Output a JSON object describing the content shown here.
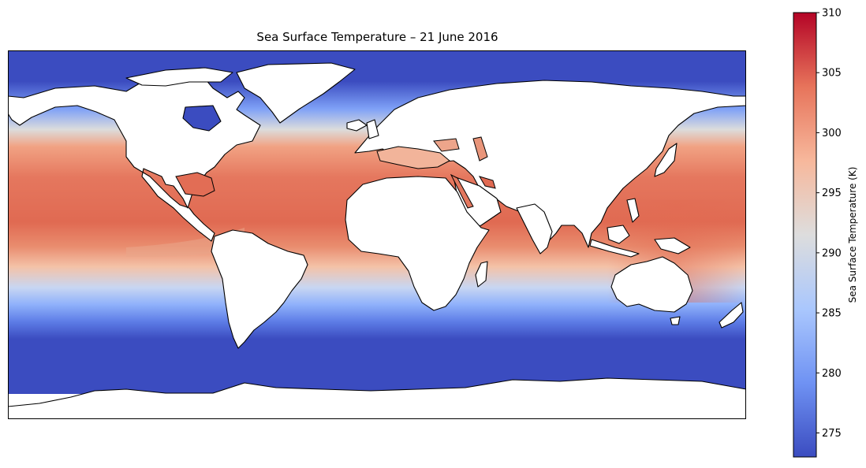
{
  "title": "Sea Surface Temperature – 21 June 2016",
  "colorbar": {
    "label": "Sea Surface Temperature (K)",
    "min": 273,
    "max": 310,
    "ticks": [
      275,
      280,
      285,
      290,
      295,
      300,
      305,
      310
    ],
    "colormap": "coolwarm",
    "colors": [
      "#3b4cc0",
      "#6f92f3",
      "#aac7fd",
      "#dddddd",
      "#f7b89c",
      "#e7745b",
      "#b40426"
    ]
  },
  "map": {
    "projection": "PlateCarree",
    "date": "21 June 2016",
    "variable": "Sea Surface Temperature",
    "units": "K",
    "land_color": "#ffffff",
    "coastline_color": "#000000"
  }
}
